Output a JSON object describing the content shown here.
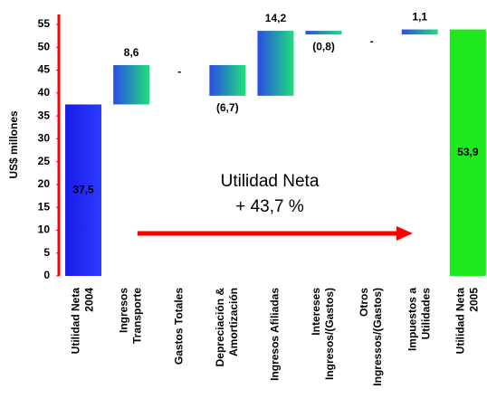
{
  "chart_data": {
    "type": "waterfall",
    "y_label": "US$ millones",
    "categories": [
      [
        "Utilidad Neta",
        "2004"
      ],
      [
        "Ingresos",
        "Transporte"
      ],
      [
        "Gastos Totales"
      ],
      [
        "Depreciación &",
        "Amortización"
      ],
      [
        "Ingresos Afiliadas"
      ],
      [
        "Intereses",
        "Ingresos/(Gastos)"
      ],
      [
        "Otros",
        "Ingressos/(Gastos)"
      ],
      [
        "Impuestos a",
        "Utilidades"
      ],
      [
        "Utilidad Neta",
        "2005"
      ]
    ],
    "values": [
      37.5,
      8.6,
      0,
      -6.7,
      14.2,
      -0.8,
      0,
      1.1,
      53.9
    ],
    "value_labels": [
      "37,5",
      "8,6",
      "-",
      "(6,7)",
      "14,2",
      "(0,8)",
      "-",
      "1,1",
      "53,9"
    ],
    "start_color": "#1a1ae8",
    "end_color": "#1ee81e",
    "step_colors": [
      "#2a4be8",
      "#1ee07a"
    ],
    "axis_color": "#ff0000",
    "annotation": [
      "Utilidad Neta",
      "+  43,7 %"
    ],
    "ylim": [
      0,
      55
    ],
    "yticks": [
      0,
      5,
      10,
      15,
      20,
      25,
      30,
      35,
      40,
      45,
      50,
      55
    ]
  }
}
